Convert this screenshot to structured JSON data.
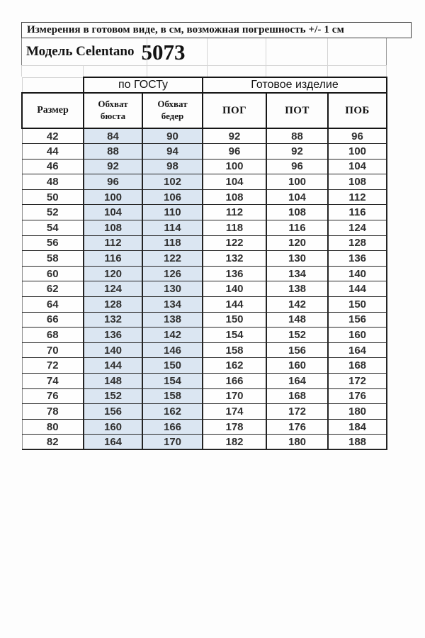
{
  "header": {
    "title": "Измерения в готовом виде, в см, возможная погрешность +/- 1 см",
    "model_label": "Модель Celentano",
    "model_number": "5073"
  },
  "table": {
    "group_headers": [
      "по ГОСТу",
      "Готовое изделие"
    ],
    "columns": [
      "Размер",
      "Обхват бюста",
      "Обхват бедер",
      "ПОГ",
      "ПОТ",
      "ПОБ"
    ],
    "rows": [
      [
        42,
        84,
        90,
        92,
        88,
        96
      ],
      [
        44,
        88,
        94,
        96,
        92,
        100
      ],
      [
        46,
        92,
        98,
        100,
        96,
        104
      ],
      [
        48,
        96,
        102,
        104,
        100,
        108
      ],
      [
        50,
        100,
        106,
        108,
        104,
        112
      ],
      [
        52,
        104,
        110,
        112,
        108,
        116
      ],
      [
        54,
        108,
        114,
        118,
        116,
        124
      ],
      [
        56,
        112,
        118,
        122,
        120,
        128
      ],
      [
        58,
        116,
        122,
        132,
        130,
        136
      ],
      [
        60,
        120,
        126,
        136,
        134,
        140
      ],
      [
        62,
        124,
        130,
        140,
        138,
        144
      ],
      [
        64,
        128,
        134,
        144,
        142,
        150
      ],
      [
        66,
        132,
        138,
        150,
        148,
        156
      ],
      [
        68,
        136,
        142,
        154,
        152,
        160
      ],
      [
        70,
        140,
        146,
        158,
        156,
        164
      ],
      [
        72,
        144,
        150,
        162,
        160,
        168
      ],
      [
        74,
        148,
        154,
        166,
        164,
        172
      ],
      [
        76,
        152,
        158,
        170,
        168,
        176
      ],
      [
        78,
        156,
        162,
        174,
        172,
        180
      ],
      [
        80,
        160,
        166,
        178,
        176,
        184
      ],
      [
        82,
        164,
        170,
        182,
        180,
        188
      ]
    ]
  },
  "colors": {
    "highlight_blue": "#dbe6f2",
    "border_dark": "#242424",
    "grid_light": "#d4d4d4"
  }
}
